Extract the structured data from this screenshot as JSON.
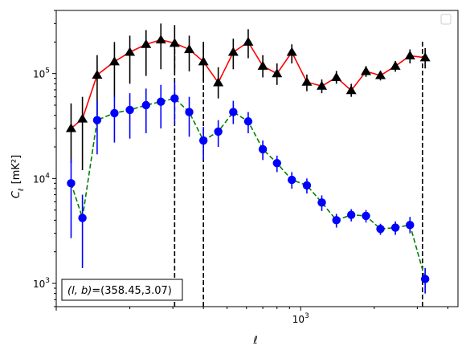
{
  "chart_data": {
    "type": "line",
    "xscale": "log",
    "yscale": "log",
    "xlabel_base": "ℓ",
    "ylabel_base": "C",
    "ylabel_sub": "ℓ",
    "ylabel_unit": "[mK²]",
    "xlim": [
      100,
      4400
    ],
    "ylim": [
      600,
      400000
    ],
    "x_tick_labels": [
      {
        "value": 1000,
        "base": "10",
        "exp": "3"
      }
    ],
    "y_tick_labels": [
      {
        "value": 1000,
        "base": "10",
        "exp": "3"
      },
      {
        "value": 10000,
        "base": "10",
        "exp": "4"
      },
      {
        "value": 100000,
        "base": "10",
        "exp": "5"
      }
    ],
    "legend": "top-right",
    "grid": false,
    "annotation": {
      "prefix": "(l, b)",
      "value": "=(358.45,3.07)"
    },
    "vlines": [
      305,
      400,
      3150
    ],
    "series": [
      {
        "marker": "triangle",
        "marker_color": "#000000",
        "line_color": "#ff0000",
        "line_style": "solid",
        "errorbar_color": "#000000",
        "points": [
          {
            "x": 115,
            "y": 30000,
            "lo": 14000,
            "hi": 52000
          },
          {
            "x": 128,
            "y": 37000,
            "lo": 12000,
            "hi": 60000
          },
          {
            "x": 147,
            "y": 97000,
            "lo": 40000,
            "hi": 150000
          },
          {
            "x": 173,
            "y": 130000,
            "lo": 60000,
            "hi": 200000
          },
          {
            "x": 200,
            "y": 160000,
            "lo": 80000,
            "hi": 230000
          },
          {
            "x": 233,
            "y": 190000,
            "lo": 95000,
            "hi": 260000
          },
          {
            "x": 268,
            "y": 210000,
            "lo": 110000,
            "hi": 300000
          },
          {
            "x": 305,
            "y": 195000,
            "lo": 105000,
            "hi": 290000
          },
          {
            "x": 350,
            "y": 170000,
            "lo": 105000,
            "hi": 230000
          },
          {
            "x": 400,
            "y": 130000,
            "lo": 85000,
            "hi": 190000
          },
          {
            "x": 460,
            "y": 82000,
            "lo": 58000,
            "hi": 115000
          },
          {
            "x": 530,
            "y": 160000,
            "lo": 110000,
            "hi": 215000
          },
          {
            "x": 610,
            "y": 200000,
            "lo": 140000,
            "hi": 265000
          },
          {
            "x": 700,
            "y": 118000,
            "lo": 92000,
            "hi": 150000
          },
          {
            "x": 800,
            "y": 100000,
            "lo": 78000,
            "hi": 125000
          },
          {
            "x": 920,
            "y": 160000,
            "lo": 125000,
            "hi": 190000
          },
          {
            "x": 1060,
            "y": 83000,
            "lo": 68000,
            "hi": 98000
          },
          {
            "x": 1220,
            "y": 76000,
            "lo": 65000,
            "hi": 88000
          },
          {
            "x": 1400,
            "y": 92000,
            "lo": 80000,
            "hi": 106000
          },
          {
            "x": 1610,
            "y": 69000,
            "lo": 60000,
            "hi": 80000
          },
          {
            "x": 1850,
            "y": 105000,
            "lo": 93000,
            "hi": 118000
          },
          {
            "x": 2120,
            "y": 96000,
            "lo": 86000,
            "hi": 106000
          },
          {
            "x": 2440,
            "y": 118000,
            "lo": 104000,
            "hi": 132000
          },
          {
            "x": 2800,
            "y": 148000,
            "lo": 125000,
            "hi": 170000
          },
          {
            "x": 3230,
            "y": 142000,
            "lo": 112000,
            "hi": 175000
          }
        ]
      },
      {
        "marker": "circle",
        "marker_color": "#0000ff",
        "line_color": "#008000",
        "line_style": "dashed",
        "errorbar_color": "#0000ff",
        "points": [
          {
            "x": 115,
            "y": 9000,
            "lo": 2700,
            "hi": 15500
          },
          {
            "x": 128,
            "y": 4200,
            "lo": 1400,
            "hi": 7000
          },
          {
            "x": 147,
            "y": 36000,
            "lo": 17000,
            "hi": 55000
          },
          {
            "x": 173,
            "y": 42000,
            "lo": 22000,
            "hi": 62000
          },
          {
            "x": 200,
            "y": 45000,
            "lo": 24000,
            "hi": 65000
          },
          {
            "x": 233,
            "y": 50000,
            "lo": 27000,
            "hi": 72000
          },
          {
            "x": 268,
            "y": 54000,
            "lo": 30000,
            "hi": 78000
          },
          {
            "x": 305,
            "y": 58000,
            "lo": 33000,
            "hi": 83000
          },
          {
            "x": 350,
            "y": 43000,
            "lo": 25000,
            "hi": 60000
          },
          {
            "x": 400,
            "y": 23000,
            "lo": 15000,
            "hi": 31000
          },
          {
            "x": 460,
            "y": 28000,
            "lo": 20000,
            "hi": 36000
          },
          {
            "x": 530,
            "y": 43000,
            "lo": 33000,
            "hi": 55000
          },
          {
            "x": 610,
            "y": 35000,
            "lo": 27000,
            "hi": 43000
          },
          {
            "x": 700,
            "y": 19000,
            "lo": 15000,
            "hi": 23000
          },
          {
            "x": 800,
            "y": 14000,
            "lo": 11500,
            "hi": 16500
          },
          {
            "x": 920,
            "y": 9700,
            "lo": 8000,
            "hi": 11500
          },
          {
            "x": 1060,
            "y": 8600,
            "lo": 7200,
            "hi": 10000
          },
          {
            "x": 1220,
            "y": 5900,
            "lo": 4900,
            "hi": 6900
          },
          {
            "x": 1400,
            "y": 4000,
            "lo": 3400,
            "hi": 4600
          },
          {
            "x": 1610,
            "y": 4500,
            "lo": 3900,
            "hi": 5100
          },
          {
            "x": 1850,
            "y": 4400,
            "lo": 3800,
            "hi": 5000
          },
          {
            "x": 2120,
            "y": 3300,
            "lo": 2900,
            "hi": 3700
          },
          {
            "x": 2440,
            "y": 3400,
            "lo": 2900,
            "hi": 3900
          },
          {
            "x": 2800,
            "y": 3600,
            "lo": 3000,
            "hi": 4300
          },
          {
            "x": 3230,
            "y": 1100,
            "lo": 800,
            "hi": 1400
          }
        ]
      }
    ]
  }
}
